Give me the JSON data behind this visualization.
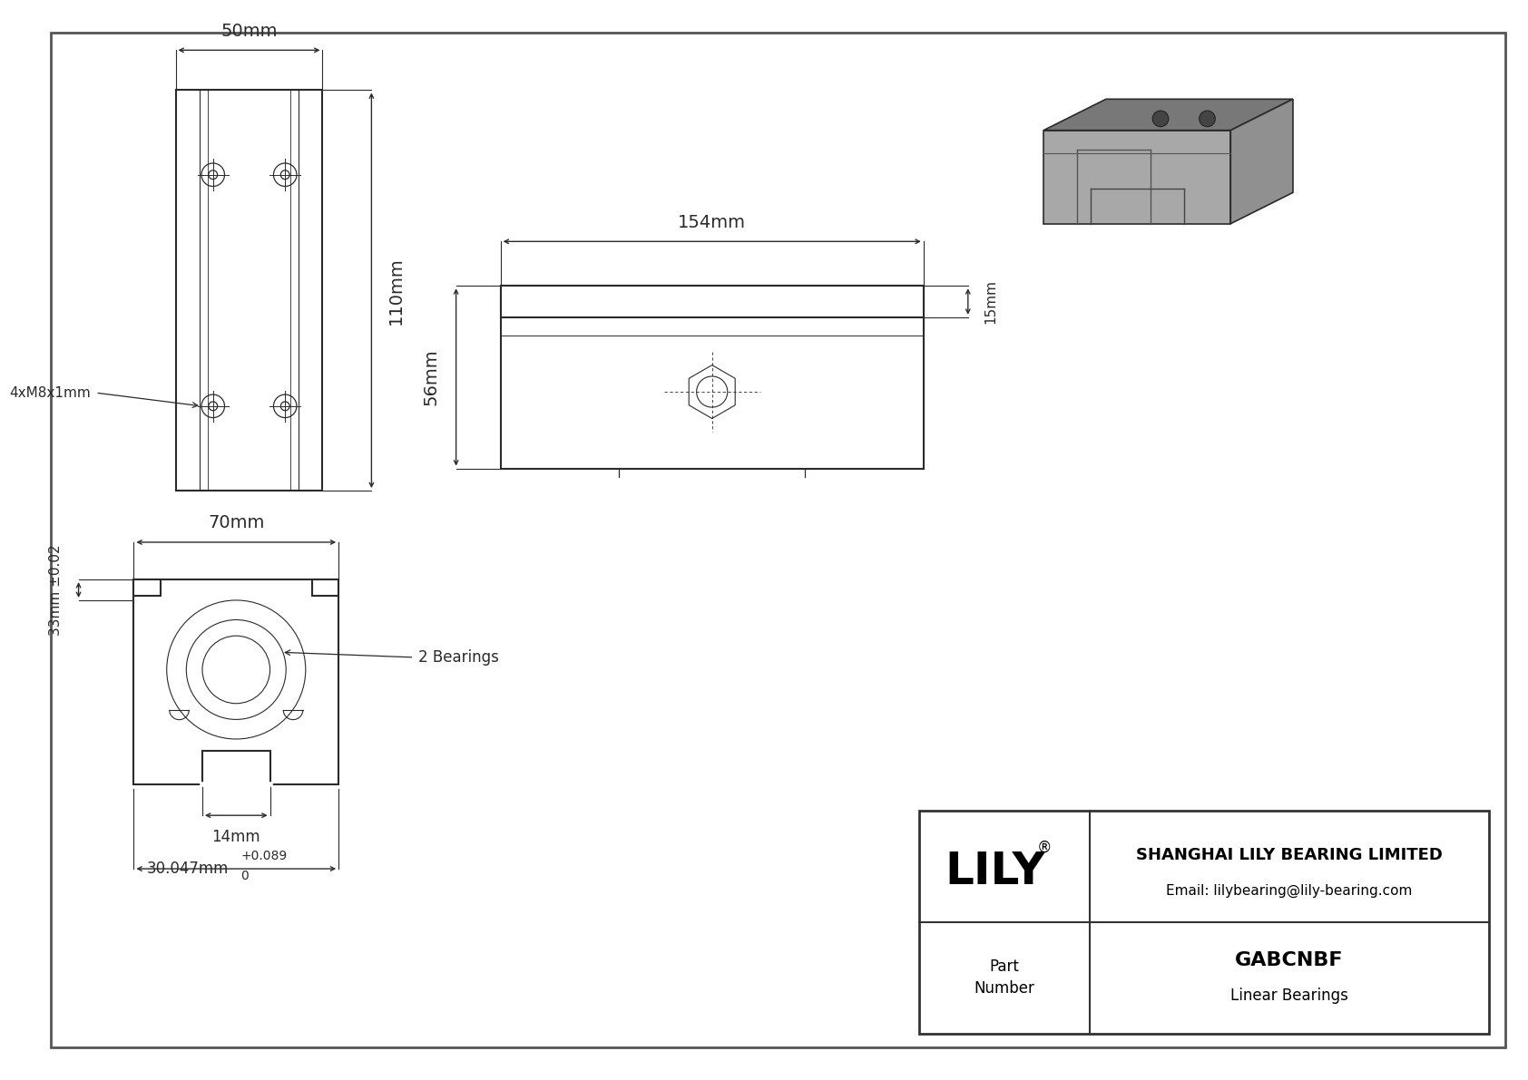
{
  "bg_color": "#ffffff",
  "line_color": "#2a2a2a",
  "title_block": {
    "company": "SHANGHAI LILY BEARING LIMITED",
    "email": "Email: lilybearing@lily-bearing.com",
    "logo": "LILY",
    "logo_reg": "®",
    "part_label": "Part\nNumber",
    "part_number": "GABCNBF",
    "part_type": "Linear Bearings"
  },
  "dims": {
    "front_width": "50mm",
    "front_height": "110mm",
    "bolt_label": "4xM8x1mm",
    "side_length": "154mm",
    "side_height": "56mm",
    "side_top": "15mm",
    "cross_width": "70mm",
    "cross_inner": "33mm ±0.02",
    "cross_bottom": "14mm",
    "cross_bore": "30.047mm",
    "cross_tol_hi": "+0.089",
    "cross_tol_lo": "0",
    "cross_label": "2 Bearings"
  }
}
